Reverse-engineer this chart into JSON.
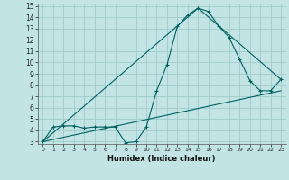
{
  "title": "",
  "xlabel": "Humidex (Indice chaleur)",
  "xlim": [
    -0.5,
    23.5
  ],
  "ylim": [
    2.8,
    15.2
  ],
  "yticks": [
    3,
    4,
    5,
    6,
    7,
    8,
    9,
    10,
    11,
    12,
    13,
    14,
    15
  ],
  "xticks": [
    0,
    1,
    2,
    3,
    4,
    5,
    6,
    7,
    8,
    9,
    10,
    11,
    12,
    13,
    14,
    15,
    16,
    17,
    18,
    19,
    20,
    21,
    22,
    23
  ],
  "bg_color": "#c2e4e4",
  "grid_color": "#a0cccc",
  "line_color": "#006060",
  "series_main": {
    "x": [
      0,
      1,
      2,
      3,
      4,
      5,
      6,
      7,
      8,
      9,
      10,
      11,
      12,
      13,
      14,
      15,
      16,
      17,
      18,
      19,
      20,
      21,
      22,
      23
    ],
    "y": [
      3,
      4.3,
      4.4,
      4.4,
      4.2,
      4.3,
      4.3,
      4.3,
      2.9,
      3.0,
      4.3,
      7.5,
      9.8,
      13.2,
      14.2,
      14.8,
      14.5,
      13.2,
      12.2,
      10.3,
      8.4,
      7.5,
      7.5,
      8.5
    ]
  },
  "series_line1": {
    "x": [
      0,
      23
    ],
    "y": [
      3,
      7.5
    ]
  },
  "series_line2": {
    "x": [
      0,
      15,
      23
    ],
    "y": [
      3,
      14.8,
      8.5
    ]
  }
}
